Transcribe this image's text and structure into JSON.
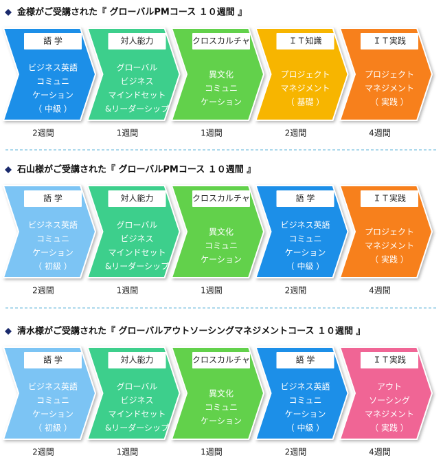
{
  "sections": [
    {
      "title": "金様がご受講された『 グローバルPMコース １０週間 』",
      "steps": [
        {
          "label": "語 学",
          "lines": [
            "ビジネス英語",
            "コミュニ",
            "ケーション",
            "（ 中級 ）"
          ],
          "duration": "2週間",
          "color": "#1a8fe8"
        },
        {
          "label": "対人能力",
          "lines": [
            "グローバル",
            "ビジネス",
            "マインドセット",
            "&リーダーシップ"
          ],
          "duration": "1週間",
          "color": "#3ccf8c"
        },
        {
          "label": "クロスカルチャ",
          "lines": [
            "異文化",
            "コミュニ",
            "ケーション"
          ],
          "duration": "1週間",
          "color": "#62d14b"
        },
        {
          "label": "ＩＴ知識",
          "lines": [
            "プロジェクト",
            "マネジメント",
            "（ 基礎 ）"
          ],
          "duration": "2週間",
          "color": "#f7b500"
        },
        {
          "label": "ＩＴ実践",
          "lines": [
            "プロジェクト",
            "マネジメント",
            "（ 実践 ）"
          ],
          "duration": "4週間",
          "color": "#f7801e"
        }
      ]
    },
    {
      "title": "石山様がご受講された『 グローバルPMコース １０週間 』",
      "steps": [
        {
          "label": "語 学",
          "lines": [
            "ビジネス英語",
            "コミュニ",
            "ケーション",
            "（ 初級 ）"
          ],
          "duration": "2週間",
          "color": "#7cc4f4"
        },
        {
          "label": "対人能力",
          "lines": [
            "グローバル",
            "ビジネス",
            "マインドセット",
            "&リーダーシップ"
          ],
          "duration": "1週間",
          "color": "#3ccf8c"
        },
        {
          "label": "クロスカルチャ",
          "lines": [
            "異文化",
            "コミュニ",
            "ケーション"
          ],
          "duration": "1週間",
          "color": "#62d14b"
        },
        {
          "label": "語 学",
          "lines": [
            "ビジネス英語",
            "コミュニ",
            "ケーション",
            "（ 中級 ）"
          ],
          "duration": "2週間",
          "color": "#1a8fe8"
        },
        {
          "label": "ＩＴ実践",
          "lines": [
            "プロジェクト",
            "マネジメント",
            "（ 実践 ）"
          ],
          "duration": "4週間",
          "color": "#f7801e"
        }
      ]
    },
    {
      "title": "清水様がご受講された『 グローバルアウトソーシングマネジメントコース １０週間 』",
      "steps": [
        {
          "label": "語 学",
          "lines": [
            "ビジネス英語",
            "コミュニ",
            "ケーション",
            "（ 初級 ）"
          ],
          "duration": "2週間",
          "color": "#7cc4f4"
        },
        {
          "label": "対人能力",
          "lines": [
            "グローバル",
            "ビジネス",
            "マインドセット",
            "&リーダーシップ"
          ],
          "duration": "1週間",
          "color": "#3ccf8c"
        },
        {
          "label": "クロスカルチャ",
          "lines": [
            "異文化",
            "コミュニ",
            "ケーション"
          ],
          "duration": "1週間",
          "color": "#62d14b"
        },
        {
          "label": "語 学",
          "lines": [
            "ビジネス英語",
            "コミュニ",
            "ケーション",
            "（ 中級 ）"
          ],
          "duration": "2週間",
          "color": "#1a8fe8"
        },
        {
          "label": "ＩＴ実践",
          "lines": [
            "アウト",
            "ソーシング",
            "マネジメント",
            "（ 実践 ）"
          ],
          "duration": "4週間",
          "color": "#f06595"
        }
      ]
    }
  ]
}
